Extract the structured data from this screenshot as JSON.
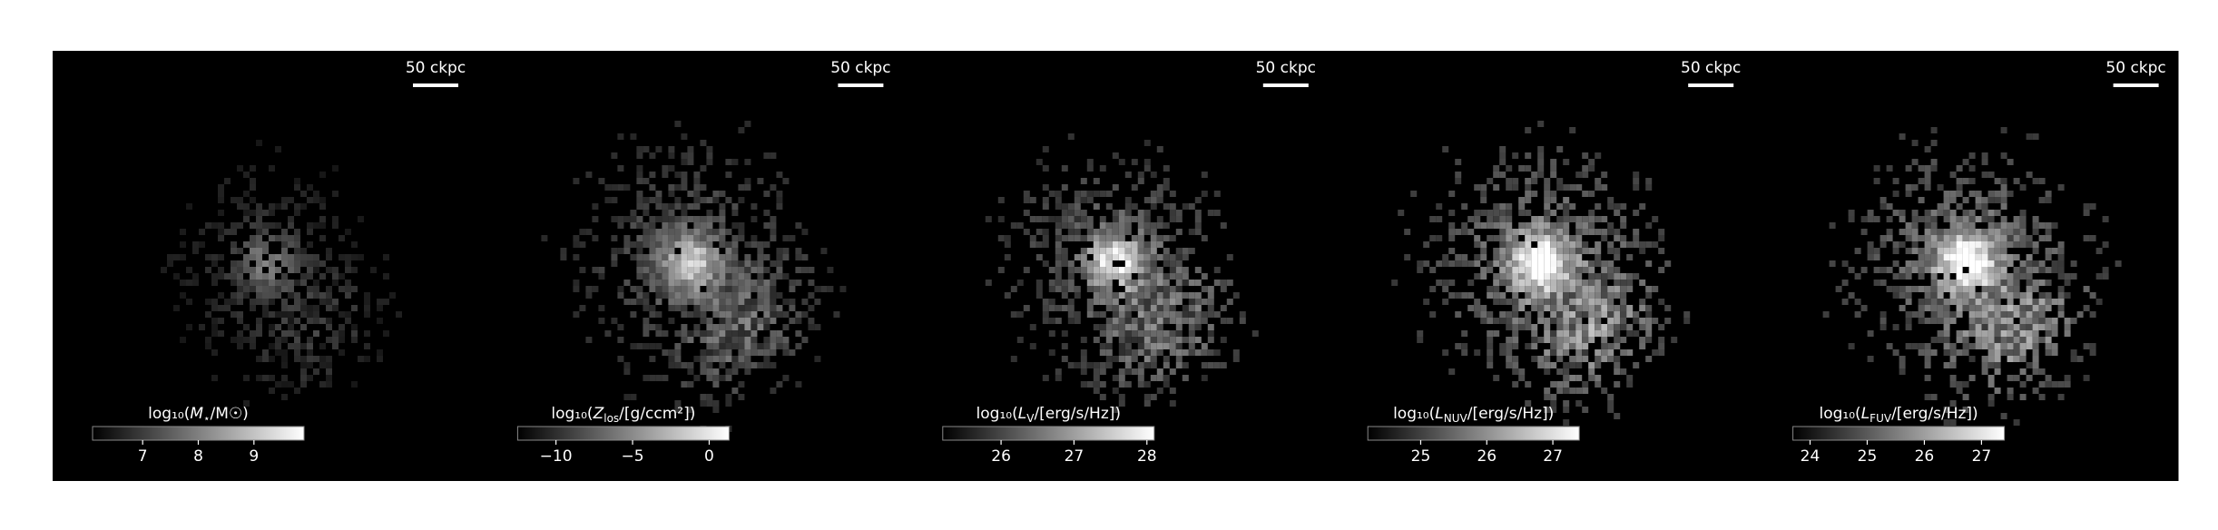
{
  "panels": [
    {
      "scale_bar": "50 ckpc",
      "colorbar": {
        "label": {
          "prefix": "log₁₀(",
          "sym": "M",
          "sub": "⋆",
          "suffix": "/M☉)"
        },
        "range": [
          6.1,
          9.9
        ],
        "ticks": [
          7,
          8,
          9
        ]
      }
    },
    {
      "scale_bar": "50 ckpc",
      "colorbar": {
        "label": {
          "prefix": "log₁₀(",
          "sym": "Z",
          "sub": "los",
          "suffix": "/[g/ccm²])"
        },
        "range": [
          -12.5,
          1.3
        ],
        "ticks": [
          {
            "value": -10,
            "label": "−10"
          },
          {
            "value": -5,
            "label": "−5"
          },
          0
        ]
      }
    },
    {
      "scale_bar": "50 ckpc",
      "colorbar": {
        "label": {
          "prefix": "log₁₀(",
          "sym": "L",
          "sub": "V",
          "suffix": "/[erg/s/Hz])"
        },
        "range": [
          25.2,
          28.1
        ],
        "ticks": [
          26,
          27,
          28
        ]
      }
    },
    {
      "scale_bar": "50 ckpc",
      "colorbar": {
        "label": {
          "prefix": "log₁₀(",
          "sym": "L",
          "sub": "NUV",
          "suffix": "/[erg/s/Hz])"
        },
        "range": [
          24.2,
          27.4
        ],
        "ticks": [
          25,
          26,
          27
        ]
      }
    },
    {
      "scale_bar": "50 ckpc",
      "colorbar": {
        "label": {
          "prefix": "log₁₀(",
          "sym": "L",
          "sub": "FUV",
          "suffix": "/[erg/s/Hz])"
        },
        "range": [
          23.7,
          27.4
        ],
        "ticks": [
          24,
          25,
          26,
          27
        ]
      }
    }
  ]
}
